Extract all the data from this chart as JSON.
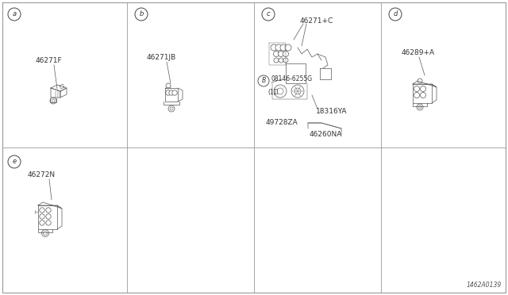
{
  "bg_color": "#ffffff",
  "line_color": "#555555",
  "text_color": "#333333",
  "grid_color": "#999999",
  "diagram_id": "1462A0139",
  "fig_w": 6.4,
  "fig_h": 3.72,
  "cols": 4,
  "rows": 2
}
